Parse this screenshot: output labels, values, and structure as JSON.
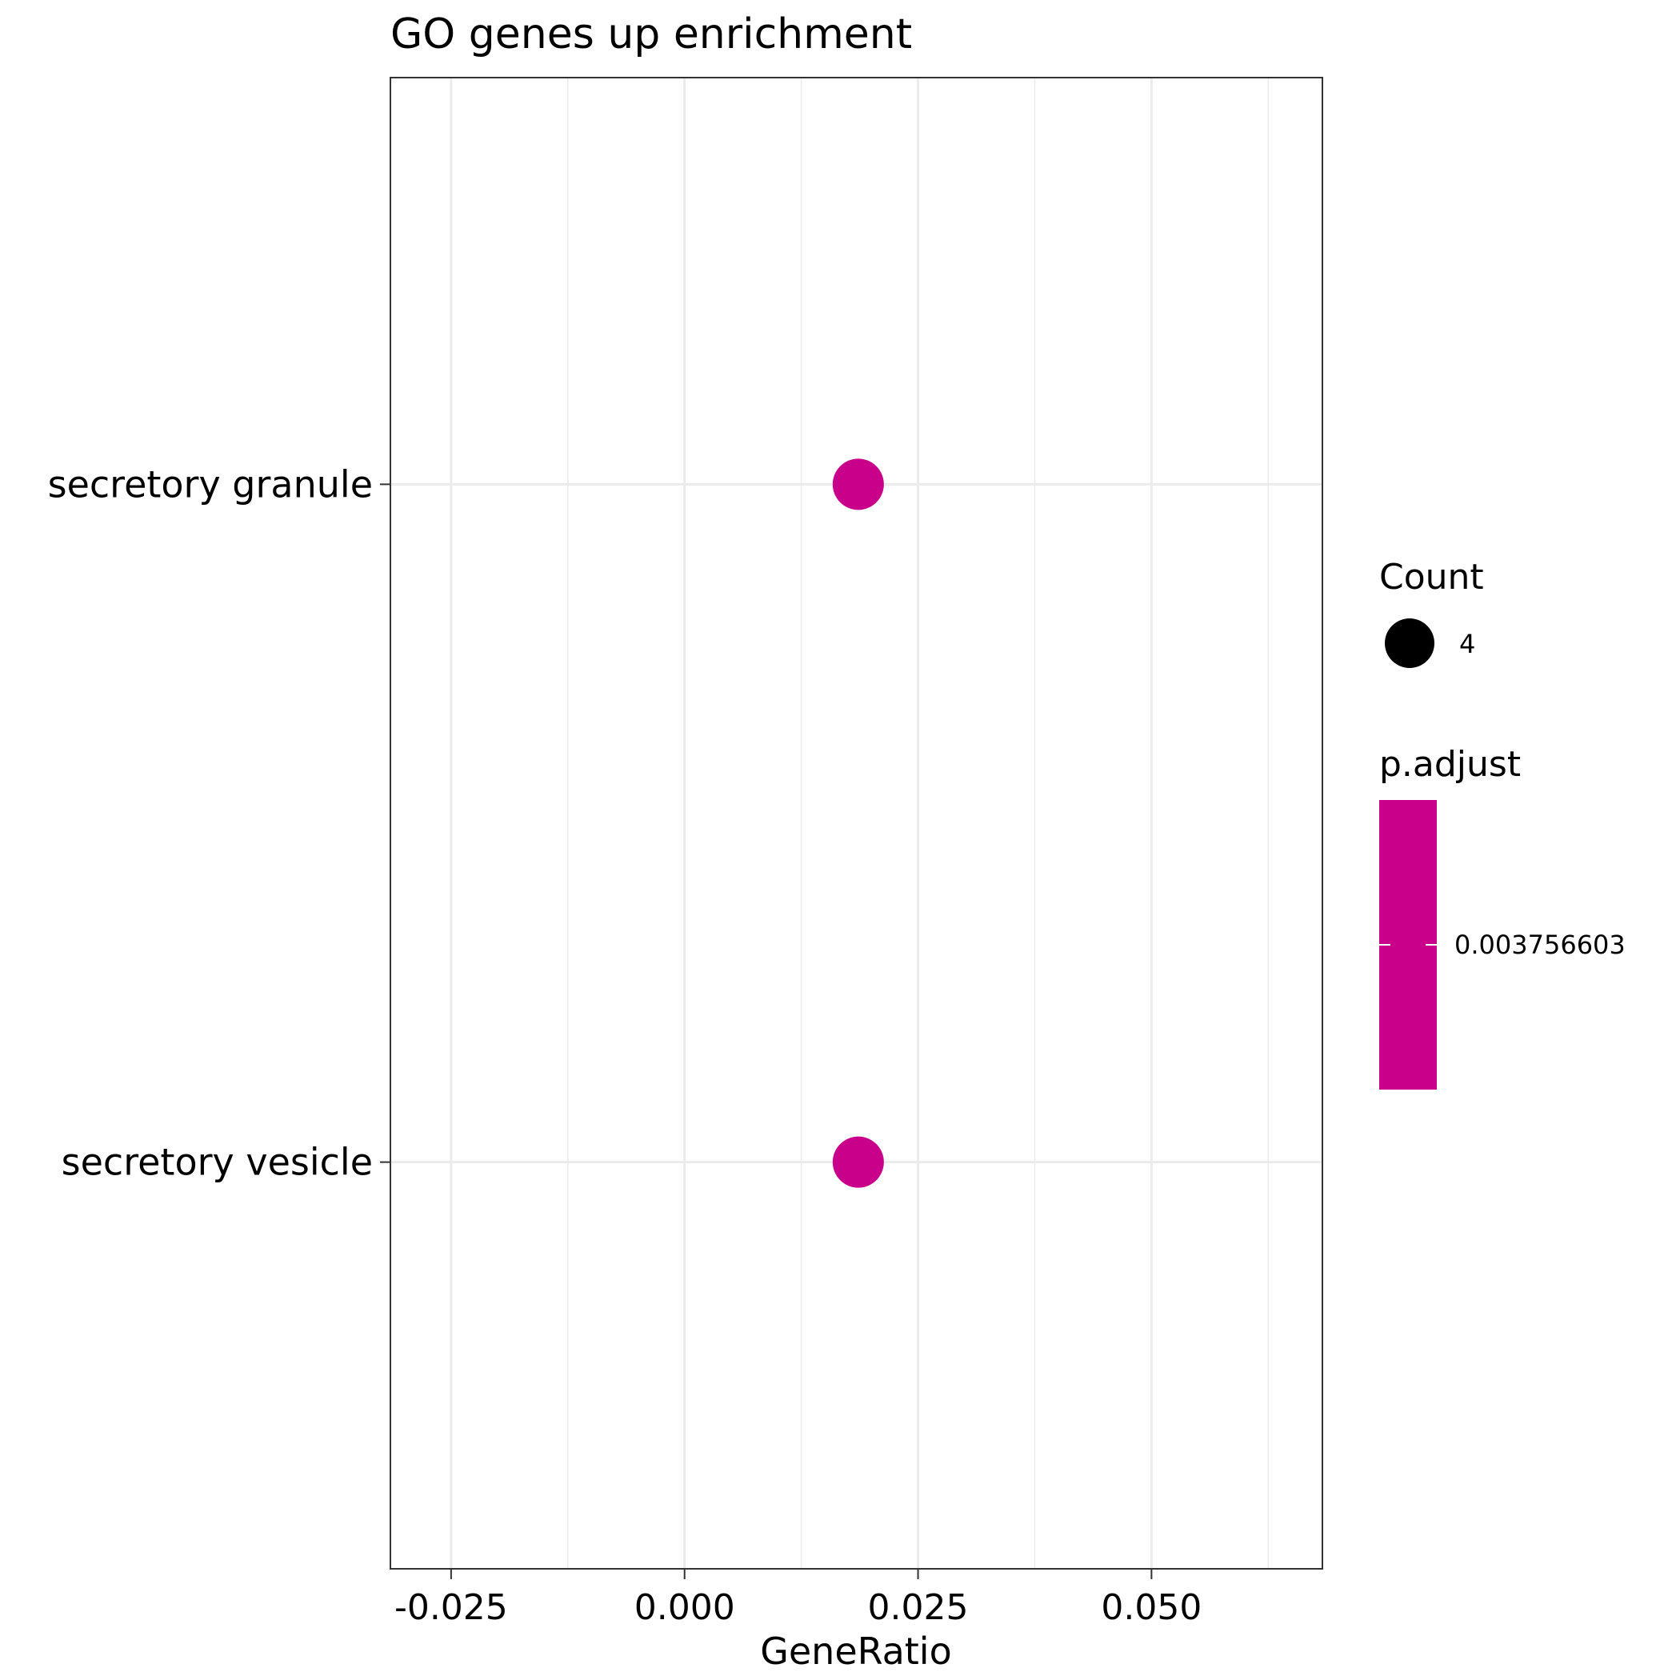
{
  "chart_data": {
    "type": "scatter",
    "title": "GO genes up enrichment",
    "xlabel": "GeneRatio",
    "ylabel": "",
    "xlim": [
      -0.0315,
      0.0683
    ],
    "x_ticks": [
      -0.025,
      0.0,
      0.025,
      0.05
    ],
    "x_tick_labels": [
      "-0.025",
      "0.000",
      "0.025",
      "0.050"
    ],
    "categories": [
      "secretory granule",
      "secretory vesicle"
    ],
    "points": [
      {
        "category": "secretory granule",
        "x": 0.0186,
        "count": 4,
        "p_adjust": 0.003756603
      },
      {
        "category": "secretory vesicle",
        "x": 0.0186,
        "count": 4,
        "p_adjust": 0.003756603
      }
    ],
    "grid": true,
    "legend_position": "right",
    "legend": {
      "size_title": "Count",
      "size_label": "4",
      "color_title": "p.adjust",
      "color_label": "0.003756603"
    },
    "colors": {
      "point": "#C9008A",
      "grid": "#ebebeb",
      "panel_border": "#333333",
      "size_key": "#000000"
    }
  }
}
